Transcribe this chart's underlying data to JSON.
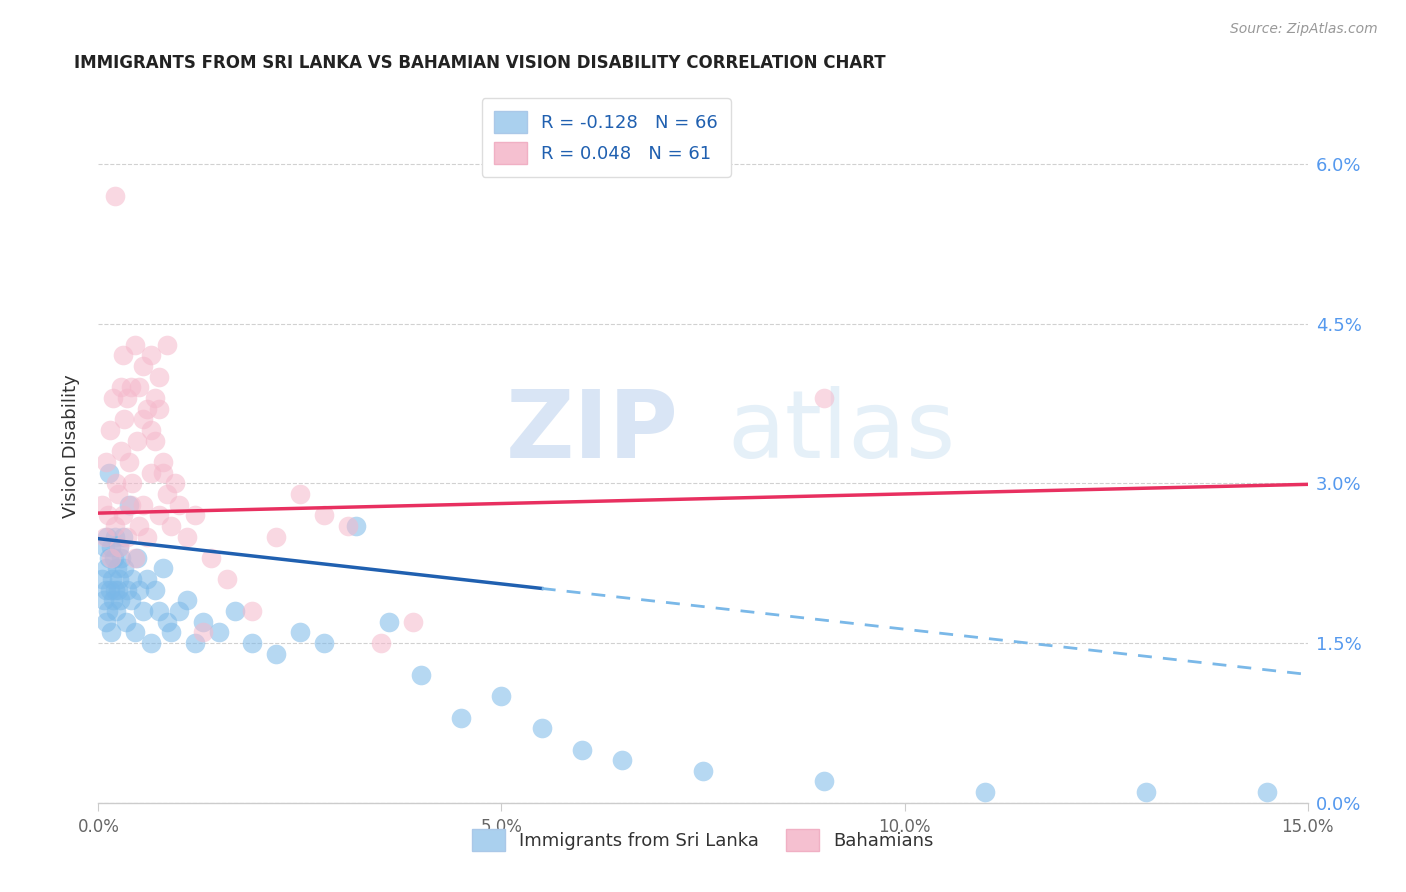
{
  "title": "IMMIGRANTS FROM SRI LANKA VS BAHAMIAN VISION DISABILITY CORRELATION CHART",
  "source": "Source: ZipAtlas.com",
  "ylabel": "Vision Disability",
  "xlabel_ticks": [
    "0.0%",
    "5.0%",
    "10.0%",
    "15.0%"
  ],
  "xlabel_vals": [
    0.0,
    5.0,
    10.0,
    15.0
  ],
  "ylabel_ticks": [
    "0.0%",
    "1.5%",
    "3.0%",
    "4.5%",
    "6.0%"
  ],
  "ylabel_vals": [
    0.0,
    1.5,
    3.0,
    4.5,
    6.0
  ],
  "xmin": 0.0,
  "xmax": 15.0,
  "ymin": 0.0,
  "ymax": 6.7,
  "blue_color": "#7ab8e8",
  "pink_color": "#f5b8cb",
  "blue_line_color": "#2060b0",
  "pink_line_color": "#e83060",
  "blue_R": -0.128,
  "blue_N": 66,
  "pink_R": 0.048,
  "pink_N": 61,
  "watermark": "ZIPatlas",
  "legend_label_blue": "Immigrants from Sri Lanka",
  "legend_label_pink": "Bahamians",
  "blue_scatter_x": [
    0.05,
    0.07,
    0.08,
    0.09,
    0.1,
    0.1,
    0.11,
    0.12,
    0.13,
    0.14,
    0.15,
    0.16,
    0.17,
    0.18,
    0.19,
    0.2,
    0.21,
    0.22,
    0.23,
    0.24,
    0.25,
    0.26,
    0.27,
    0.28,
    0.3,
    0.32,
    0.34,
    0.36,
    0.38,
    0.4,
    0.42,
    0.45,
    0.48,
    0.5,
    0.55,
    0.6,
    0.65,
    0.7,
    0.75,
    0.8,
    0.85,
    0.9,
    1.0,
    1.1,
    1.2,
    1.3,
    1.5,
    1.7,
    1.9,
    2.2,
    2.5,
    2.8,
    3.2,
    3.6,
    4.0,
    4.5,
    5.0,
    5.5,
    6.0,
    6.5,
    7.5,
    9.0,
    11.0,
    13.0,
    14.5,
    0.13
  ],
  "blue_scatter_y": [
    2.1,
    1.9,
    2.4,
    2.0,
    2.2,
    1.7,
    2.5,
    1.8,
    2.3,
    2.0,
    1.6,
    2.4,
    2.1,
    1.9,
    2.3,
    2.0,
    2.5,
    1.8,
    2.2,
    2.0,
    2.4,
    2.1,
    1.9,
    2.3,
    2.5,
    2.2,
    1.7,
    2.0,
    2.8,
    1.9,
    2.1,
    1.6,
    2.3,
    2.0,
    1.8,
    2.1,
    1.5,
    2.0,
    1.8,
    2.2,
    1.7,
    1.6,
    1.8,
    1.9,
    1.5,
    1.7,
    1.6,
    1.8,
    1.5,
    1.4,
    1.6,
    1.5,
    2.6,
    1.7,
    1.2,
    0.8,
    1.0,
    0.7,
    0.5,
    0.4,
    0.3,
    0.2,
    0.1,
    0.1,
    0.1,
    3.1
  ],
  "pink_scatter_x": [
    0.05,
    0.08,
    0.1,
    0.12,
    0.14,
    0.16,
    0.18,
    0.2,
    0.22,
    0.24,
    0.26,
    0.28,
    0.3,
    0.32,
    0.35,
    0.38,
    0.4,
    0.42,
    0.45,
    0.48,
    0.5,
    0.55,
    0.6,
    0.65,
    0.7,
    0.75,
    0.8,
    0.85,
    0.9,
    1.0,
    1.1,
    1.2,
    1.4,
    1.6,
    1.9,
    2.2,
    2.5,
    2.8,
    3.1,
    3.5,
    3.9,
    1.3,
    0.45,
    0.55,
    0.65,
    0.75,
    0.85,
    0.4,
    0.3,
    0.28,
    0.35,
    0.5,
    0.6,
    0.7,
    0.55,
    0.65,
    0.75,
    0.95,
    0.8,
    9.0,
    0.2
  ],
  "pink_scatter_y": [
    2.8,
    2.5,
    3.2,
    2.7,
    3.5,
    2.3,
    3.8,
    2.6,
    3.0,
    2.9,
    2.4,
    3.3,
    2.7,
    3.6,
    2.5,
    3.2,
    2.8,
    3.0,
    2.3,
    3.4,
    2.6,
    2.8,
    2.5,
    3.1,
    3.4,
    2.7,
    3.2,
    2.9,
    2.6,
    2.8,
    2.5,
    2.7,
    2.3,
    2.1,
    1.8,
    2.5,
    2.9,
    2.7,
    2.6,
    1.5,
    1.7,
    1.6,
    4.3,
    4.1,
    4.2,
    4.0,
    4.3,
    3.9,
    4.2,
    3.9,
    3.8,
    3.9,
    3.7,
    3.8,
    3.6,
    3.5,
    3.7,
    3.0,
    3.1,
    3.8,
    5.7
  ]
}
